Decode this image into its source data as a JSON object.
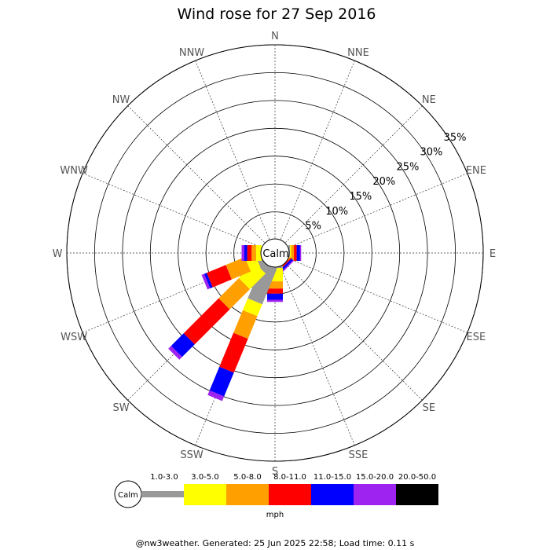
{
  "chart_data": {
    "type": "wind-rose",
    "title": "Wind rose for 27 Sep 2016",
    "directions": [
      "N",
      "NNE",
      "NE",
      "ENE",
      "E",
      "ESE",
      "SE",
      "SSE",
      "S",
      "SSW",
      "SW",
      "WSW",
      "W",
      "WNW",
      "NW",
      "NNW"
    ],
    "ring_labels": [
      "5%",
      "10%",
      "15%",
      "20%",
      "25%",
      "30%",
      "35%"
    ],
    "ring_values": [
      5,
      10,
      15,
      20,
      25,
      30,
      35
    ],
    "radial_max": 35,
    "calm_label": "Calm",
    "unit_label": "mph",
    "speed_bins": [
      {
        "label": "1.0-3.0",
        "color": "#999999"
      },
      {
        "label": "3.0-5.0",
        "color": "#ffff00"
      },
      {
        "label": "5.0-8.0",
        "color": "#ff9f00"
      },
      {
        "label": "8.0-11.0",
        "color": "#ff0000"
      },
      {
        "label": "11.0-15.0",
        "color": "#0000ff"
      },
      {
        "label": "15.0-20.0",
        "color": "#9e22f0"
      },
      {
        "label": "20.0-50.0",
        "color": "#000000"
      }
    ],
    "series": [
      {
        "direction": "E",
        "cumulative": [
          0.3,
          0.5,
          1.0,
          1.5,
          2.1,
          2.3,
          2.3
        ]
      },
      {
        "direction": "SE",
        "cumulative": [
          0.0,
          0.0,
          0.2,
          0.4,
          0.8,
          1.0,
          1.0
        ]
      },
      {
        "direction": "S",
        "cumulative": [
          0.3,
          2.7,
          4.0,
          4.9,
          6.0,
          6.4,
          6.4
        ]
      },
      {
        "direction": "SSW",
        "cumulative": [
          7.0,
          9.3,
          13.7,
          20.3,
          24.9,
          25.8,
          25.8
        ]
      },
      {
        "direction": "SW",
        "cumulative": [
          1.4,
          5.4,
          10.5,
          19.4,
          22.6,
          23.3,
          23.3
        ]
      },
      {
        "direction": "WSW",
        "cumulative": [
          1.0,
          2.9,
          6.6,
          10.3,
          10.8,
          11.3,
          11.3
        ]
      },
      {
        "direction": "W",
        "cumulative": [
          0.0,
          1.0,
          1.8,
          2.6,
          3.1,
          3.6,
          3.6
        ]
      }
    ]
  },
  "footer": "@nw3weather. Generated: 25 Jun 2025 22:58; Load time: 0.11 s"
}
